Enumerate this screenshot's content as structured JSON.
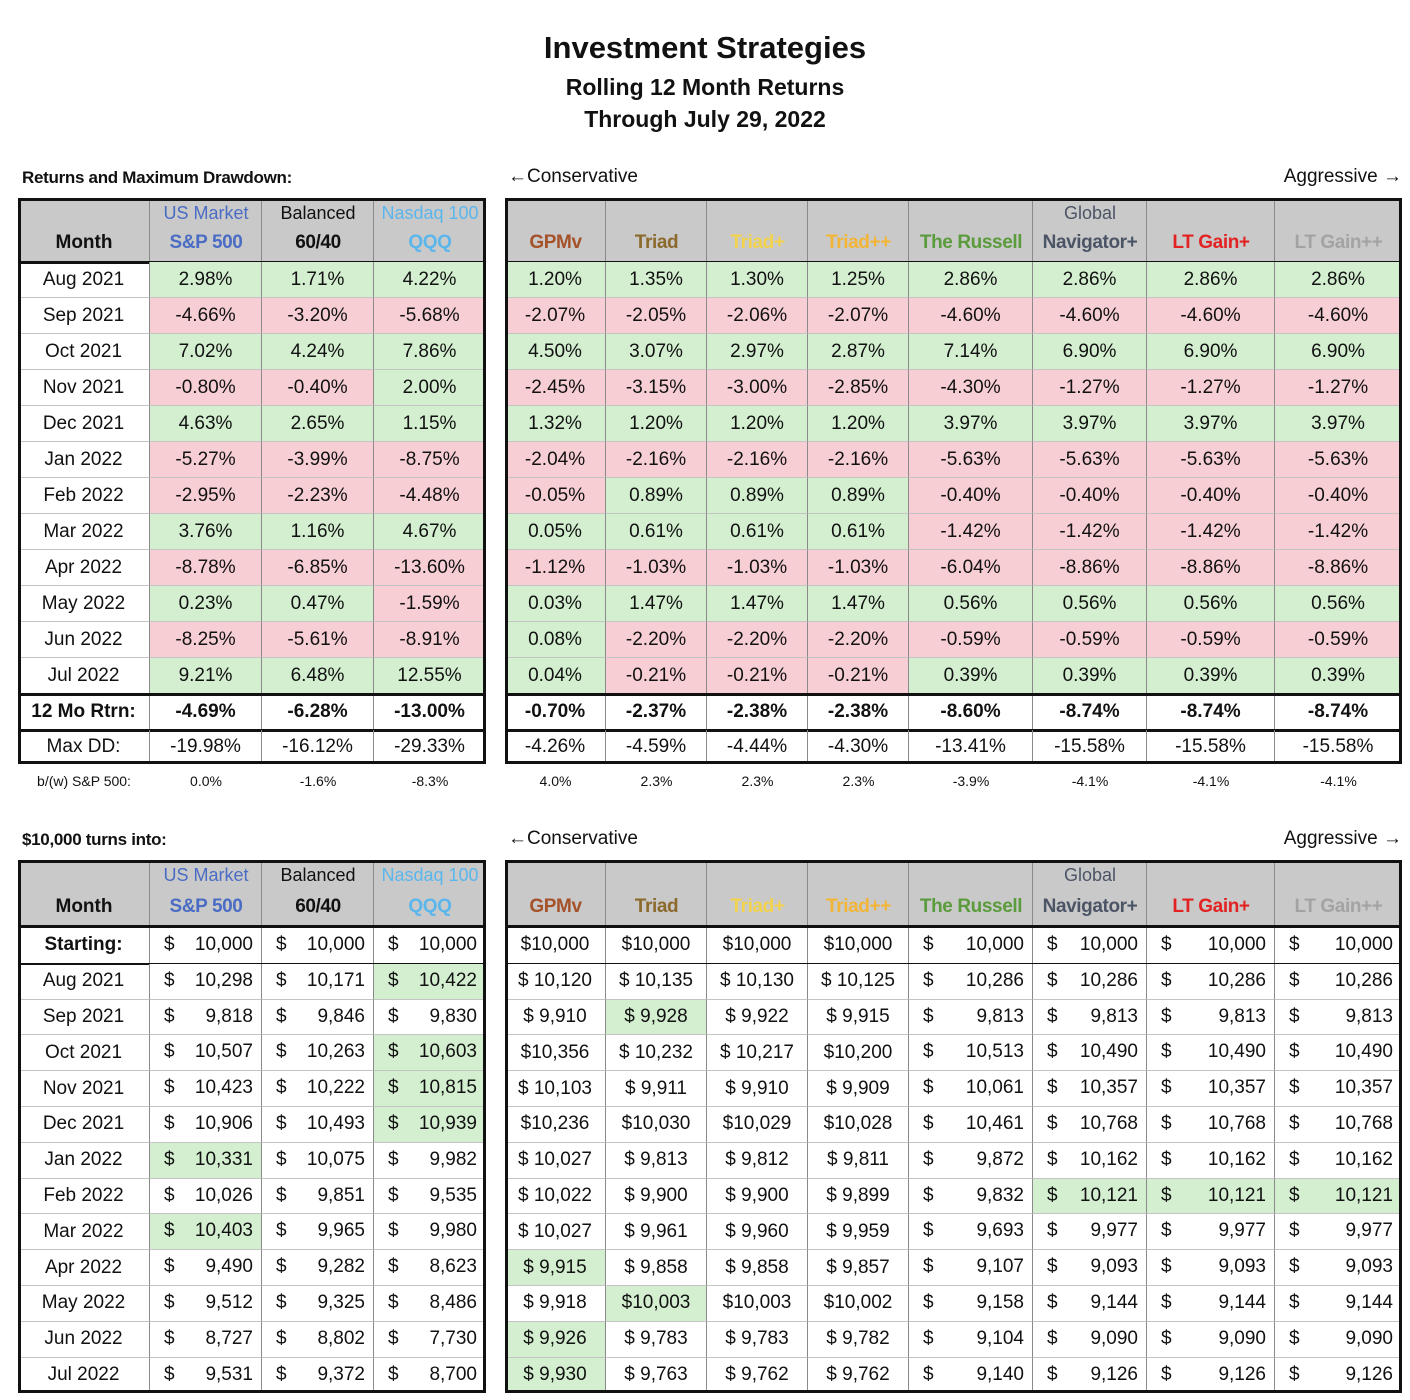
{
  "header": {
    "title": "Investment Strategies",
    "subtitle": "Rolling 12 Month Returns",
    "date": "Through July 29, 2022"
  },
  "month_header": "Month",
  "positive_color": "#d3efd0",
  "negative_color": "#f6ced4",
  "header_background": "#c9c9c9",
  "columns": [
    {
      "top": "US Market",
      "name": "S&P 500",
      "color": "#4a6cc4"
    },
    {
      "top": "Balanced",
      "name": "60/40",
      "color": "#111111"
    },
    {
      "top": "Nasdaq 100",
      "name": "QQQ",
      "color": "#5bb6ec"
    },
    {
      "name": "GPMv",
      "color": "#a5522a"
    },
    {
      "name": "Triad",
      "color": "#8c6a2c"
    },
    {
      "name": "Triad+",
      "color": "#f3d34c"
    },
    {
      "name": "Triad++",
      "color": "#f2b535"
    },
    {
      "name": "The Russell",
      "color": "#5a9b3c"
    },
    {
      "top": "Global",
      "name": "Navigator+",
      "color": "#4b5566"
    },
    {
      "name": "LT Gain+",
      "color": "#e32222"
    },
    {
      "name": "LT Gain++",
      "color": "#a3a3a3"
    }
  ],
  "returns": {
    "label": "Returns and Maximum Drawdown:",
    "left_note": "←Conservative",
    "right_note": "Aggressive →",
    "rows": [
      {
        "month": "Aug 2021",
        "values": [
          "2.98%",
          "1.71%",
          "4.22%",
          "1.20%",
          "1.35%",
          "1.30%",
          "1.25%",
          "2.86%",
          "2.86%",
          "2.86%",
          "2.86%"
        ]
      },
      {
        "month": "Sep 2021",
        "values": [
          "-4.66%",
          "-3.20%",
          "-5.68%",
          "-2.07%",
          "-2.05%",
          "-2.06%",
          "-2.07%",
          "-4.60%",
          "-4.60%",
          "-4.60%",
          "-4.60%"
        ]
      },
      {
        "month": "Oct 2021",
        "values": [
          "7.02%",
          "4.24%",
          "7.86%",
          "4.50%",
          "3.07%",
          "2.97%",
          "2.87%",
          "7.14%",
          "6.90%",
          "6.90%",
          "6.90%"
        ]
      },
      {
        "month": "Nov 2021",
        "values": [
          "-0.80%",
          "-0.40%",
          "2.00%",
          "-2.45%",
          "-3.15%",
          "-3.00%",
          "-2.85%",
          "-4.30%",
          "-1.27%",
          "-1.27%",
          "-1.27%"
        ]
      },
      {
        "month": "Dec 2021",
        "values": [
          "4.63%",
          "2.65%",
          "1.15%",
          "1.32%",
          "1.20%",
          "1.20%",
          "1.20%",
          "3.97%",
          "3.97%",
          "3.97%",
          "3.97%"
        ]
      },
      {
        "month": "Jan 2022",
        "values": [
          "-5.27%",
          "-3.99%",
          "-8.75%",
          "-2.04%",
          "-2.16%",
          "-2.16%",
          "-2.16%",
          "-5.63%",
          "-5.63%",
          "-5.63%",
          "-5.63%"
        ]
      },
      {
        "month": "Feb 2022",
        "values": [
          "-2.95%",
          "-2.23%",
          "-4.48%",
          "-0.05%",
          "0.89%",
          "0.89%",
          "0.89%",
          "-0.40%",
          "-0.40%",
          "-0.40%",
          "-0.40%"
        ]
      },
      {
        "month": "Mar 2022",
        "values": [
          "3.76%",
          "1.16%",
          "4.67%",
          "0.05%",
          "0.61%",
          "0.61%",
          "0.61%",
          "-1.42%",
          "-1.42%",
          "-1.42%",
          "-1.42%"
        ]
      },
      {
        "month": "Apr 2022",
        "values": [
          "-8.78%",
          "-6.85%",
          "-13.60%",
          "-1.12%",
          "-1.03%",
          "-1.03%",
          "-1.03%",
          "-6.04%",
          "-8.86%",
          "-8.86%",
          "-8.86%"
        ]
      },
      {
        "month": "May 2022",
        "values": [
          "0.23%",
          "0.47%",
          "-1.59%",
          "0.03%",
          "1.47%",
          "1.47%",
          "1.47%",
          "0.56%",
          "0.56%",
          "0.56%",
          "0.56%"
        ]
      },
      {
        "month": "Jun 2022",
        "values": [
          "-8.25%",
          "-5.61%",
          "-8.91%",
          "0.08%",
          "-2.20%",
          "-2.20%",
          "-2.20%",
          "-0.59%",
          "-0.59%",
          "-0.59%",
          "-0.59%"
        ]
      },
      {
        "month": "Jul 2022",
        "values": [
          "9.21%",
          "6.48%",
          "12.55%",
          "0.04%",
          "-0.21%",
          "-0.21%",
          "-0.21%",
          "0.39%",
          "0.39%",
          "0.39%",
          "0.39%"
        ]
      }
    ],
    "total": {
      "label": "12 Mo Rtrn:",
      "values": [
        "-4.69%",
        "-6.28%",
        "-13.00%",
        "-0.70%",
        "-2.37%",
        "-2.38%",
        "-2.38%",
        "-8.60%",
        "-8.74%",
        "-8.74%",
        "-8.74%"
      ]
    },
    "drawdown": {
      "label": "Max DD:",
      "values": [
        "-19.98%",
        "-16.12%",
        "-29.33%",
        "-4.26%",
        "-4.59%",
        "-4.44%",
        "-4.30%",
        "-13.41%",
        "-15.58%",
        "-15.58%",
        "-15.58%"
      ]
    },
    "relative": {
      "label": "b/(w) S&P 500:",
      "values": [
        "0.0%",
        "-1.6%",
        "-8.3%",
        "4.0%",
        "2.3%",
        "2.3%",
        "2.3%",
        "-3.9%",
        "-4.1%",
        "-4.1%",
        "-4.1%"
      ]
    }
  },
  "growth": {
    "label": "$10,000 turns into:",
    "left_note": "←Conservative",
    "right_note": "Aggressive →",
    "rows": [
      {
        "month": "Starting:",
        "values": [
          "$ 10,000",
          "$ 10,000",
          "$ 10,000",
          "$10,000",
          "$10,000",
          "$10,000",
          "$10,000",
          "$ 10,000",
          "$ 10,000",
          "$ 10,000",
          "$ 10,000"
        ],
        "highlight": []
      },
      {
        "month": "Aug 2021",
        "values": [
          "$ 10,298",
          "$ 10,171",
          "$ 10,422",
          "$ 10,120",
          "$ 10,135",
          "$ 10,130",
          "$ 10,125",
          "$ 10,286",
          "$ 10,286",
          "$ 10,286",
          "$ 10,286"
        ],
        "highlight": [
          2
        ]
      },
      {
        "month": "Sep 2021",
        "values": [
          "$ 9,818",
          "$ 9,846",
          "$ 9,830",
          "$ 9,910",
          "$ 9,928",
          "$ 9,922",
          "$ 9,915",
          "$ 9,813",
          "$ 9,813",
          "$ 9,813",
          "$ 9,813"
        ],
        "highlight": [
          4
        ]
      },
      {
        "month": "Oct 2021",
        "values": [
          "$ 10,507",
          "$ 10,263",
          "$ 10,603",
          "$10,356",
          "$ 10,232",
          "$ 10,217",
          "$10,200",
          "$ 10,513",
          "$ 10,490",
          "$ 10,490",
          "$ 10,490"
        ],
        "highlight": [
          2
        ]
      },
      {
        "month": "Nov 2021",
        "values": [
          "$ 10,423",
          "$ 10,222",
          "$ 10,815",
          "$ 10,103",
          "$ 9,911",
          "$ 9,910",
          "$ 9,909",
          "$ 10,061",
          "$ 10,357",
          "$ 10,357",
          "$ 10,357"
        ],
        "highlight": [
          2
        ]
      },
      {
        "month": "Dec 2021",
        "values": [
          "$ 10,906",
          "$ 10,493",
          "$ 10,939",
          "$10,236",
          "$10,030",
          "$10,029",
          "$10,028",
          "$ 10,461",
          "$ 10,768",
          "$ 10,768",
          "$ 10,768"
        ],
        "highlight": [
          2
        ]
      },
      {
        "month": "Jan 2022",
        "values": [
          "$ 10,331",
          "$ 10,075",
          "$ 9,982",
          "$ 10,027",
          "$ 9,813",
          "$ 9,812",
          "$ 9,811",
          "$ 9,872",
          "$ 10,162",
          "$ 10,162",
          "$ 10,162"
        ],
        "highlight": [
          0
        ]
      },
      {
        "month": "Feb 2022",
        "values": [
          "$ 10,026",
          "$ 9,851",
          "$ 9,535",
          "$ 10,022",
          "$ 9,900",
          "$ 9,900",
          "$ 9,899",
          "$ 9,832",
          "$ 10,121",
          "$ 10,121",
          "$ 10,121"
        ],
        "highlight": [
          8,
          9,
          10
        ]
      },
      {
        "month": "Mar 2022",
        "values": [
          "$ 10,403",
          "$ 9,965",
          "$ 9,980",
          "$ 10,027",
          "$ 9,961",
          "$ 9,960",
          "$ 9,959",
          "$ 9,693",
          "$ 9,977",
          "$ 9,977",
          "$ 9,977"
        ],
        "highlight": [
          0
        ]
      },
      {
        "month": "Apr 2022",
        "values": [
          "$ 9,490",
          "$ 9,282",
          "$ 8,623",
          "$ 9,915",
          "$ 9,858",
          "$ 9,858",
          "$ 9,857",
          "$ 9,107",
          "$ 9,093",
          "$ 9,093",
          "$ 9,093"
        ],
        "highlight": [
          3
        ]
      },
      {
        "month": "May 2022",
        "values": [
          "$ 9,512",
          "$ 9,325",
          "$ 8,486",
          "$ 9,918",
          "$10,003",
          "$10,003",
          "$10,002",
          "$ 9,158",
          "$ 9,144",
          "$ 9,144",
          "$ 9,144"
        ],
        "highlight": [
          4
        ]
      },
      {
        "month": "Jun 2022",
        "values": [
          "$ 8,727",
          "$ 8,802",
          "$ 7,730",
          "$ 9,926",
          "$ 9,783",
          "$ 9,783",
          "$ 9,782",
          "$ 9,104",
          "$ 9,090",
          "$ 9,090",
          "$ 9,090"
        ],
        "highlight": [
          3
        ]
      },
      {
        "month": "Jul 2022",
        "values": [
          "$ 9,531",
          "$ 9,372",
          "$ 8,700",
          "$ 9,930",
          "$ 9,763",
          "$ 9,762",
          "$ 9,762",
          "$ 9,140",
          "$ 9,126",
          "$ 9,126",
          "$ 9,126"
        ],
        "highlight": [
          3
        ]
      }
    ]
  }
}
